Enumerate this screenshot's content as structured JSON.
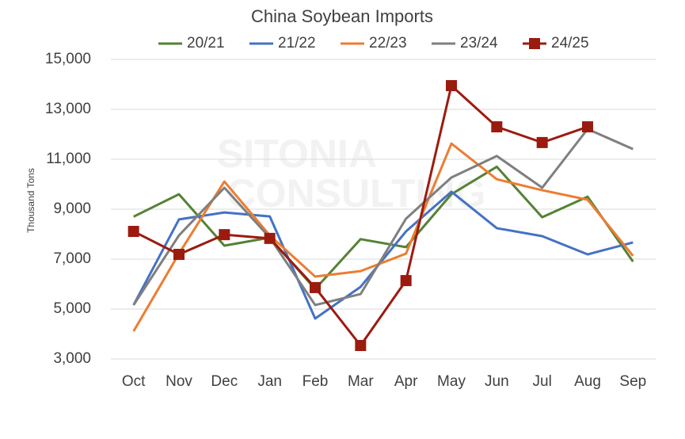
{
  "chart_data": {
    "type": "line",
    "title": "China Soybean Imports",
    "y_label": "Thousand Tons",
    "watermark": [
      "SITONIA",
      "CONSULTING"
    ],
    "categories": [
      "Oct",
      "Nov",
      "Dec",
      "Jan",
      "Feb",
      "Mar",
      "Apr",
      "May",
      "Jun",
      "Jul",
      "Aug",
      "Sep"
    ],
    "series": [
      {
        "name": "20/21",
        "color": "#548235",
        "values": [
          8700,
          9600,
          7540,
          7860,
          5800,
          7800,
          7480,
          9600,
          10700,
          8680,
          9500,
          6900
        ]
      },
      {
        "name": "21/22",
        "color": "#4472c4",
        "values": [
          5160,
          8590,
          8870,
          8710,
          4620,
          5890,
          8110,
          9700,
          8240,
          7920,
          7190,
          7670
        ]
      },
      {
        "name": "22/23",
        "color": "#ed7d31",
        "values": [
          4110,
          7220,
          10110,
          7950,
          6300,
          6520,
          7220,
          11630,
          10200,
          9760,
          9380,
          7130
        ]
      },
      {
        "name": "23/24",
        "color": "#7f7f7f",
        "values": [
          5160,
          7950,
          9860,
          7860,
          5160,
          5600,
          8620,
          10270,
          11130,
          9860,
          12210,
          11410
        ]
      },
      {
        "name": "24/25",
        "color": "#9b1b0f",
        "marker": "square",
        "values": [
          8110,
          7190,
          7980,
          7830,
          5860,
          3540,
          6140,
          13950,
          12300,
          11670,
          12300,
          null
        ]
      }
    ],
    "ylim": [
      3000,
      15000
    ],
    "yticks": [
      {
        "value": 3000,
        "label": "3,000"
      },
      {
        "value": 5000,
        "label": "5,000"
      },
      {
        "value": 7000,
        "label": "7,000"
      },
      {
        "value": 9000,
        "label": "9,000"
      },
      {
        "value": 11000,
        "label": "11,000"
      },
      {
        "value": 13000,
        "label": "13,000"
      },
      {
        "value": 15000,
        "label": "15,000"
      }
    ],
    "grid": true
  }
}
